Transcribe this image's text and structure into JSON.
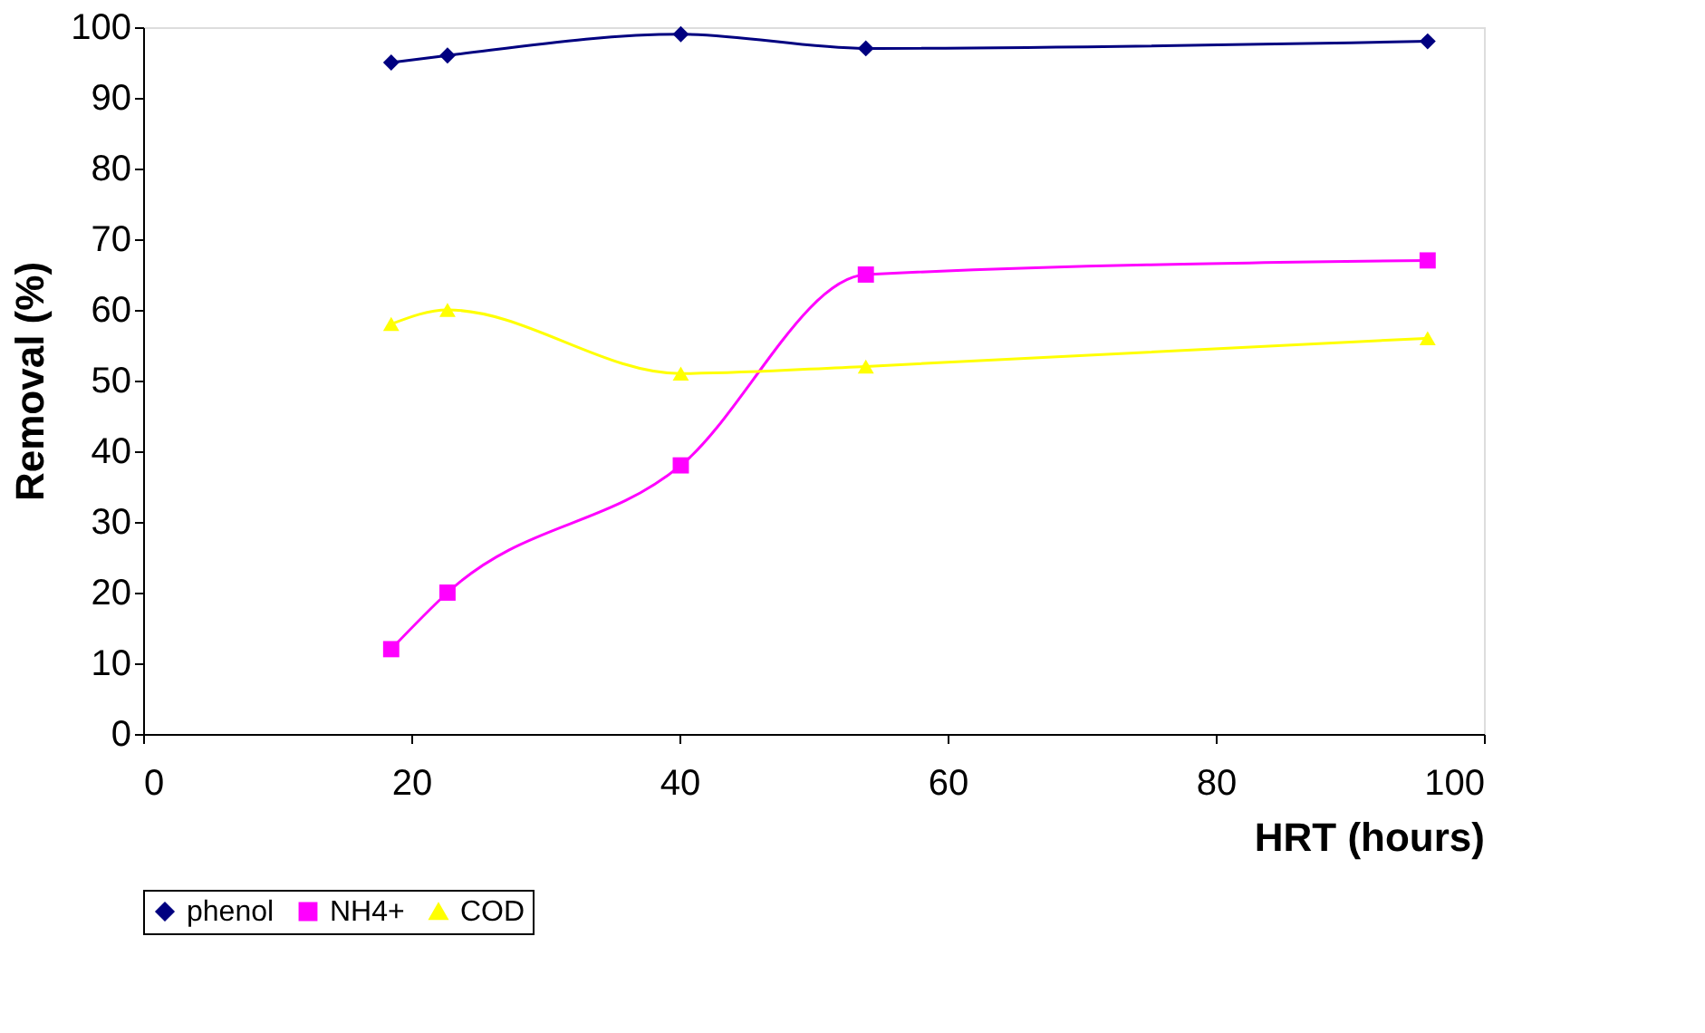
{
  "chart_data": {
    "type": "line",
    "xlabel": "HRT (hours)",
    "ylabel": "Removal (%)",
    "x": [
      18.5,
      22.7,
      40.1,
      53.9,
      95.8
    ],
    "series": [
      {
        "name": "phenol",
        "color": "#000080",
        "marker": "diamond",
        "values": [
          95,
          96,
          99,
          97,
          98
        ]
      },
      {
        "name": "NH4+",
        "color": "#ff00ff",
        "marker": "square",
        "values": [
          12,
          20,
          38,
          65,
          67
        ]
      },
      {
        "name": "COD",
        "color": "#ffff00",
        "marker": "triangle",
        "values": [
          58,
          60,
          51,
          52,
          56
        ]
      }
    ],
    "xlim": [
      0,
      100
    ],
    "xticks": [
      0,
      20,
      40,
      60,
      80,
      100
    ],
    "ylim": [
      0,
      100
    ],
    "yticks": [
      0,
      10,
      20,
      30,
      40,
      50,
      60,
      70,
      80,
      90,
      100
    ],
    "grid": false,
    "legend": "bottom",
    "line_style": "solid"
  }
}
